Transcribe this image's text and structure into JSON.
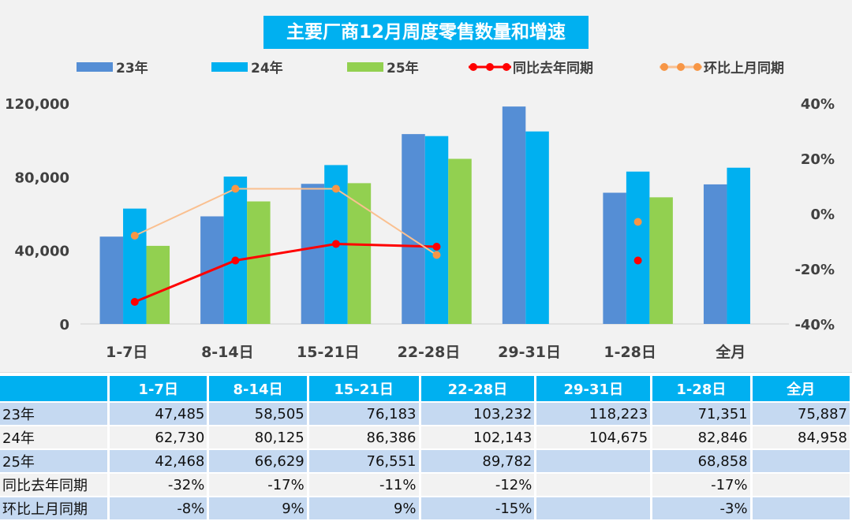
{
  "chart_data": {
    "type": "bar+line",
    "title": "主要厂商12月周度零售数量和增速",
    "categories": [
      "1-7日",
      "8-14日",
      "15-21日",
      "22-28日",
      "29-31日",
      "1-28日",
      "全月"
    ],
    "left_axis": {
      "ylim": [
        0,
        120000
      ],
      "ticks": [
        "0",
        "40,000",
        "80,000",
        "120,000"
      ]
    },
    "right_axis": {
      "ylim": [
        -0.4,
        0.4
      ],
      "ticks": [
        "-40%",
        "-20%",
        "0%",
        "20%",
        "40%"
      ]
    },
    "grid": false,
    "legend": "top",
    "series": [
      {
        "name": "23年",
        "type": "bar",
        "axis": "left",
        "color": "#558ed5",
        "values": [
          47485,
          58505,
          76183,
          103232,
          118223,
          71351,
          75887
        ]
      },
      {
        "name": "24年",
        "type": "bar",
        "axis": "left",
        "color": "#00b0f0",
        "values": [
          62730,
          80125,
          86386,
          102143,
          104675,
          82846,
          84958
        ]
      },
      {
        "name": "25年",
        "type": "bar",
        "axis": "left",
        "color": "#92d050",
        "values": [
          42468,
          66629,
          76551,
          89782,
          null,
          68858,
          null
        ]
      },
      {
        "name": "同比去年同期",
        "type": "line",
        "axis": "right",
        "color": "#ff0000",
        "line_color": "#ff0000",
        "values": [
          -0.32,
          -0.17,
          -0.11,
          -0.12,
          null,
          -0.17,
          null
        ],
        "connect": [
          0,
          1,
          2,
          3
        ]
      },
      {
        "name": "环比上月同期",
        "type": "line",
        "axis": "right",
        "color": "#f79646",
        "line_color": "#fac090",
        "values": [
          -0.08,
          0.09,
          0.09,
          -0.15,
          null,
          -0.03,
          null
        ],
        "connect": [
          0,
          1,
          2,
          3
        ]
      }
    ]
  },
  "table": {
    "headers": [
      "",
      "1-7日",
      "8-14日",
      "15-21日",
      "22-28日",
      "29-31日",
      "1-28日",
      "全月"
    ],
    "rows": [
      [
        "23年",
        "47,485",
        "58,505",
        "76,183",
        "103,232",
        "118,223",
        "71,351",
        "75,887"
      ],
      [
        "24年",
        "62,730",
        "80,125",
        "86,386",
        "102,143",
        "104,675",
        "82,846",
        "84,958"
      ],
      [
        "25年",
        "42,468",
        "66,629",
        "76,551",
        "89,782",
        "",
        "68,858",
        ""
      ],
      [
        "同比去年同期",
        "-32%",
        "-17%",
        "-11%",
        "-12%",
        "",
        "-17%",
        ""
      ],
      [
        "环比上月同期",
        "-8%",
        "9%",
        "9%",
        "-15%",
        "",
        "-3%",
        ""
      ]
    ]
  }
}
